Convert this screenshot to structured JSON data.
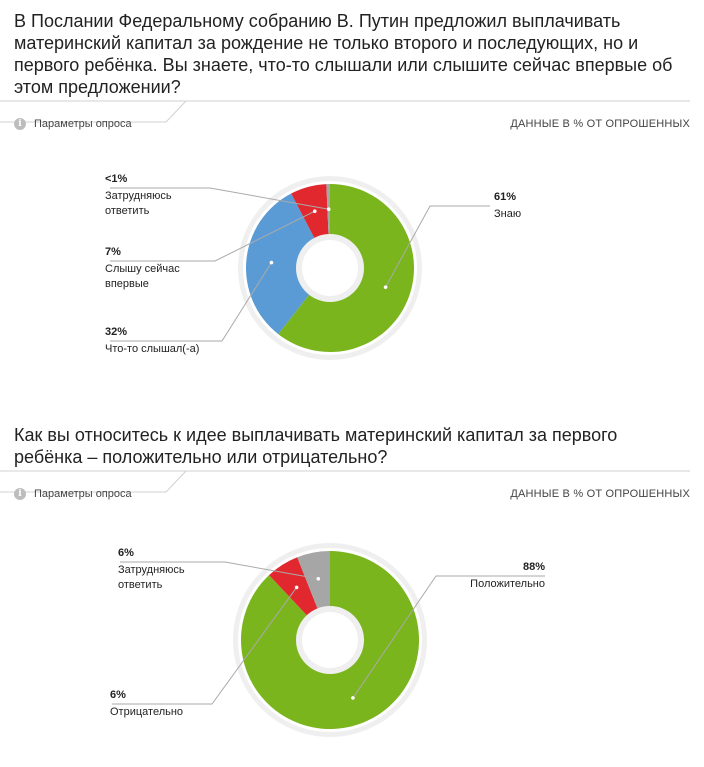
{
  "unit_note": "ДАННЫЕ В % ОТ ОПРОШЕННЫХ",
  "params_label": "Параметры опроса",
  "colors": {
    "green": "#7ab51d",
    "blue": "#5b9bd5",
    "red": "#e0282e",
    "gray": "#a6a6a6",
    "ring_bg": "#efefef"
  },
  "chart_data": [
    {
      "type": "pie",
      "title": "В Послании Федеральному собранию В. Путин предложил выплачивать материнский капитал за рождение не только второго и последующих, но и первого ребёнка. Вы знаете, что-то слышали или слышите сейчас впервые об этом предложении?",
      "slices": [
        {
          "label": "Знаю",
          "pct_text": "61%",
          "value": 61,
          "color": "#7ab51d"
        },
        {
          "label": "Что-то слышал(-а)",
          "pct_text": "32%",
          "value": 32,
          "color": "#5b9bd5"
        },
        {
          "label": "Слышу сейчас впервые",
          "pct_text": "7%",
          "value": 7,
          "color": "#e0282e"
        },
        {
          "label": "Затрудняюсь ответить",
          "pct_text": "<1%",
          "value": 0.7,
          "color": "#a6a6a6"
        }
      ]
    },
    {
      "type": "pie",
      "title": "Как вы относитесь к идее выплачивать материнский капитал за первого ребёнка – положительно или отрицательно?",
      "slices": [
        {
          "label": "Положительно",
          "pct_text": "88%",
          "value": 88,
          "color": "#7ab51d"
        },
        {
          "label": "Отрицательно",
          "pct_text": "6%",
          "value": 6,
          "color": "#e0282e"
        },
        {
          "label": "Затрудняюсь ответить",
          "pct_text": "6%",
          "value": 6,
          "color": "#a6a6a6"
        }
      ]
    }
  ]
}
